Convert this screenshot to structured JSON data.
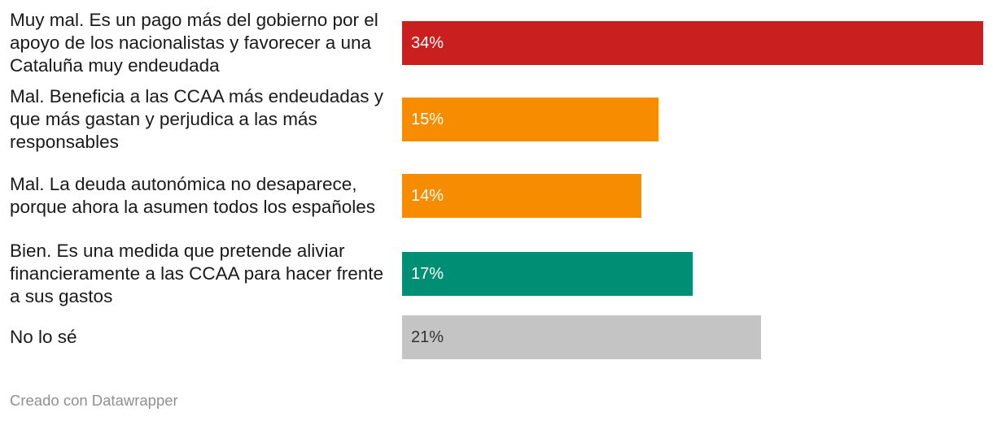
{
  "chart_data": {
    "type": "bar",
    "orientation": "horizontal",
    "categories": [
      "Muy mal. Es un pago más del gobierno por el apoyo de los nacionalistas y favorecer a una Cataluña muy endeudada",
      "Mal. Beneficia a las CCAA más endeudadas y que más gastan y perjudica a las más responsables",
      "Mal. La deuda autonómica no desaparece, porque ahora la asumen todos los españoles",
      "Bien. Es una medida que pretende aliviar financieramente a las CCAA para hacer frente a sus gastos",
      "No lo sé"
    ],
    "values": [
      34,
      15,
      14,
      17,
      21
    ],
    "value_labels": [
      "34%",
      "15%",
      "14%",
      "17%",
      "21%"
    ],
    "colors": [
      "#c91f1f",
      "#f78c00",
      "#f78c00",
      "#008f74",
      "#c4c4c4"
    ],
    "value_text_colors": [
      "#ffffff",
      "#ffffff",
      "#ffffff",
      "#ffffff",
      "#333333"
    ],
    "xlim": [
      0,
      34
    ],
    "title": "",
    "xlabel": "",
    "ylabel": ""
  },
  "footer": {
    "credit": "Creado con Datawrapper"
  }
}
